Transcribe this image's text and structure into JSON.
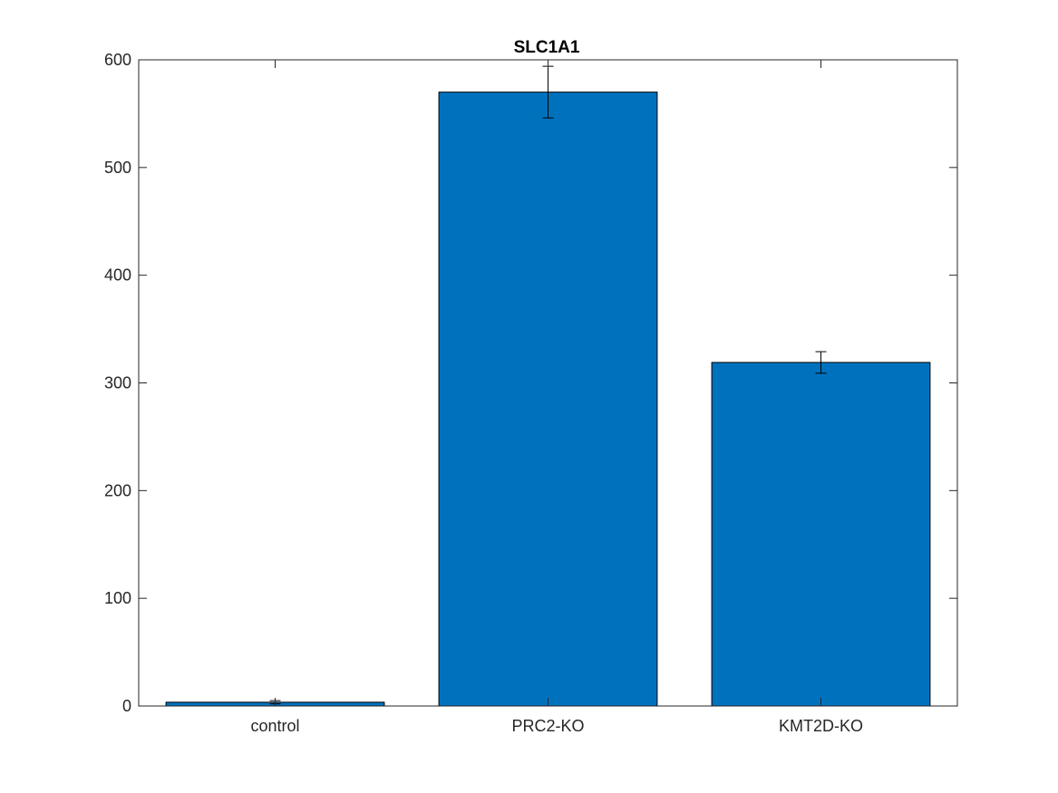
{
  "chart_data": {
    "type": "bar",
    "title": "SLC1A1",
    "xlabel": "",
    "ylabel": "",
    "categories": [
      "control",
      "PRC2-KO",
      "KMT2D-KO"
    ],
    "values": [
      3.5,
      570,
      319
    ],
    "errors": [
      1.5,
      24,
      10
    ],
    "ylim": [
      0,
      600
    ],
    "yticks": [
      0,
      100,
      200,
      300,
      400,
      500,
      600
    ],
    "ytick_labels": [
      "0",
      "100",
      "200",
      "300",
      "400",
      "500",
      "600"
    ],
    "grid": false,
    "box": true,
    "colors": {
      "bar": "#0072BD",
      "bar_edge": "#000000",
      "error_bar": "#000000",
      "axes": "#262626"
    }
  }
}
